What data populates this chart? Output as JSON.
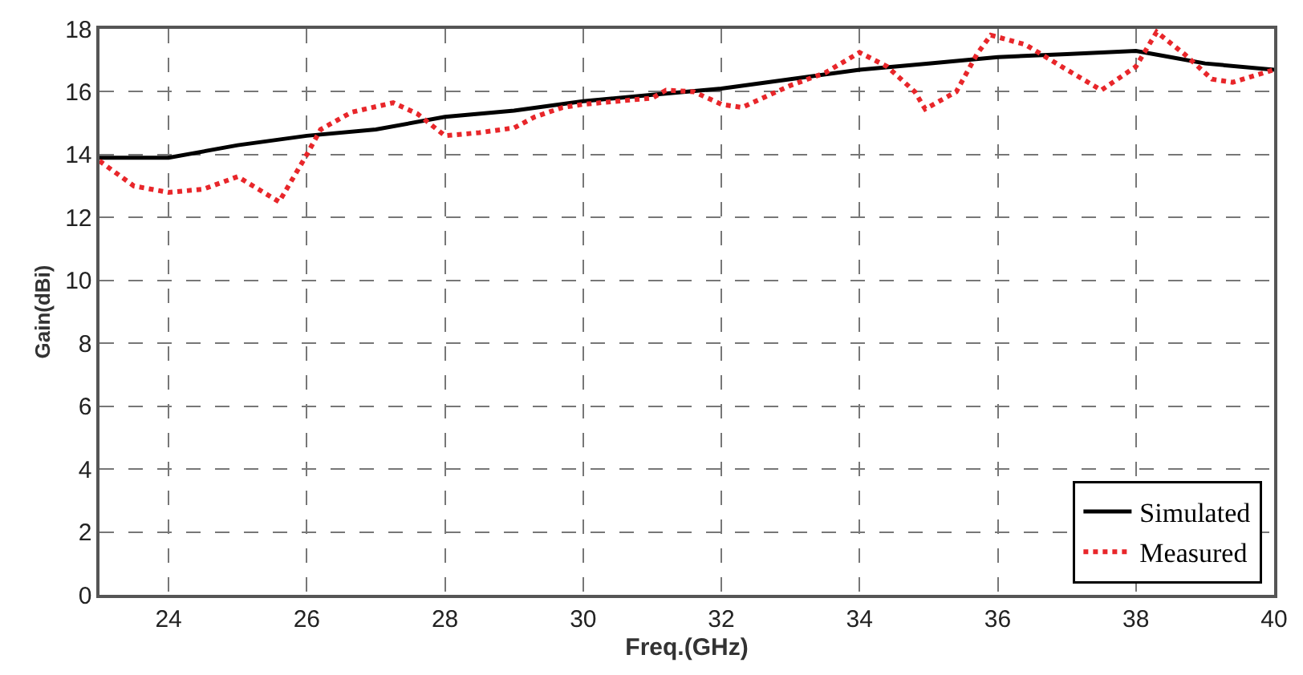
{
  "chart_data": {
    "type": "line",
    "xlabel": "Freq.(GHz)",
    "ylabel": "Gain(dBi)",
    "xlim": [
      23,
      40
    ],
    "ylim": [
      0,
      18
    ],
    "xticks": [
      24,
      26,
      28,
      30,
      32,
      34,
      36,
      38,
      40
    ],
    "yticks": [
      0,
      2,
      4,
      6,
      8,
      10,
      12,
      14,
      16,
      18
    ],
    "grid": true,
    "legend": "bottom right",
    "series": [
      {
        "name": "Simulated",
        "color": "#000000",
        "line_style": "solid",
        "x": [
          23,
          24,
          25,
          26,
          27,
          28,
          29,
          30,
          31,
          32,
          33,
          34,
          35,
          36,
          37,
          38,
          38.5,
          39,
          40
        ],
        "values": [
          13.9,
          13.9,
          14.3,
          14.6,
          14.8,
          15.2,
          15.4,
          15.7,
          15.9,
          16.1,
          16.4,
          16.7,
          16.9,
          17.1,
          17.2,
          17.3,
          17.1,
          16.9,
          16.7
        ]
      },
      {
        "name": "Measured",
        "color": "#e8262a",
        "line_style": "dotted",
        "x": [
          23,
          23.5,
          24,
          24.5,
          25,
          25.3,
          25.6,
          26,
          26.2,
          26.65,
          27.25,
          27.6,
          28,
          28.5,
          29,
          29.3,
          29.7,
          30,
          30.5,
          31,
          31.2,
          31.6,
          32,
          32.3,
          32.6,
          33,
          33.5,
          34,
          34.4,
          34.8,
          34.95,
          35.4,
          35.7,
          35.9,
          36.4,
          37,
          37.5,
          38,
          38.3,
          38.7,
          39.1,
          39.4,
          40
        ],
        "values": [
          13.8,
          13.0,
          12.8,
          12.9,
          13.3,
          12.9,
          12.5,
          14.0,
          14.8,
          15.35,
          15.65,
          15.3,
          14.6,
          14.7,
          14.85,
          15.2,
          15.5,
          15.6,
          15.7,
          15.8,
          16.05,
          16.0,
          15.6,
          15.5,
          15.8,
          16.2,
          16.6,
          17.25,
          16.8,
          16.0,
          15.45,
          16.0,
          17.2,
          17.8,
          17.5,
          16.7,
          16.05,
          16.8,
          17.9,
          17.2,
          16.4,
          16.3,
          16.7
        ]
      }
    ]
  }
}
